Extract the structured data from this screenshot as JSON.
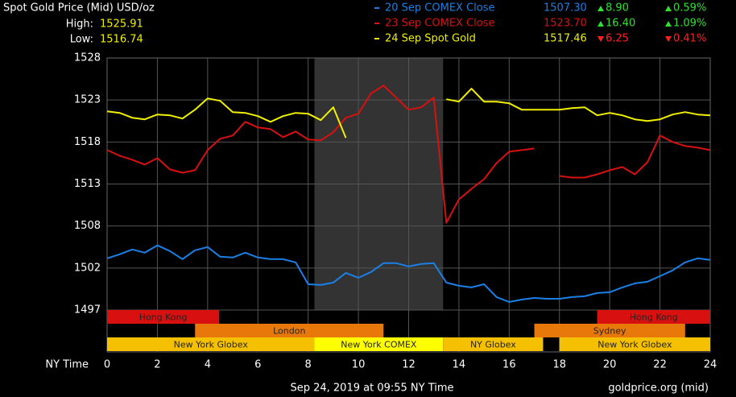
{
  "chart_data": {
    "type": "line",
    "title": "Spot Gold Price (Mid) USD/oz",
    "high_label": "High:",
    "high": "1525.91",
    "low_label": "Low:",
    "low": "1516.74",
    "xlabel": "NY Time",
    "footer_left": "Sep 24, 2019 at 09:55 NY Time",
    "footer_right": "goldprice.org (mid)",
    "xlim": [
      0,
      24
    ],
    "xticks": [
      0,
      2,
      4,
      6,
      8,
      10,
      12,
      14,
      16,
      18,
      20,
      22,
      24
    ],
    "ylim": [
      1497.2,
      1528.4
    ],
    "yticks": [
      {
        "value": 1497.2,
        "label": "1497"
      },
      {
        "value": 1502.4,
        "label": "1502"
      },
      {
        "value": 1507.6,
        "label": "1508"
      },
      {
        "value": 1512.8,
        "label": "1513"
      },
      {
        "value": 1518.0,
        "label": "1518"
      },
      {
        "value": 1523.2,
        "label": "1523"
      },
      {
        "value": 1528.4,
        "label": "1528"
      }
    ],
    "grid": true,
    "highlight_span": [
      8.25,
      13.37
    ],
    "x": [
      0,
      0.5,
      1,
      1.5,
      2,
      2.5,
      3,
      3.5,
      4,
      4.5,
      5,
      5.5,
      6,
      6.5,
      7,
      7.5,
      8,
      8.5,
      9,
      9.5,
      10,
      10.5,
      11,
      11.5,
      12,
      12.5,
      13,
      13.5,
      14,
      14.5,
      15,
      15.5,
      16,
      16.5,
      17,
      17.5,
      18,
      18.5,
      19,
      19.5,
      20,
      20.5,
      21,
      21.5,
      22,
      22.5,
      23,
      23.5,
      24
    ],
    "series": [
      {
        "name": "20 Sep COMEX Close",
        "color": "#1a80e6",
        "close": "1507.30",
        "change": "8.90",
        "change_pct": "0.59%",
        "direction": "up",
        "values": [
          1503.6,
          1504.1,
          1504.7,
          1504.3,
          1505.2,
          1504.5,
          1503.5,
          1504.6,
          1505.0,
          1503.8,
          1503.7,
          1504.3,
          1503.7,
          1503.5,
          1503.5,
          1503.1,
          1500.4,
          1500.3,
          1500.6,
          1501.8,
          1501.2,
          1501.9,
          1503.0,
          1503.0,
          1502.6,
          1502.9,
          1503.0,
          1500.6,
          1500.2,
          1500.0,
          1500.4,
          1498.8,
          1498.2,
          1498.5,
          1498.7,
          1498.6,
          1498.6,
          1498.8,
          1498.9,
          1499.3,
          1499.4,
          1500.0,
          1500.5,
          1500.7,
          1501.4,
          1502.1,
          1503.1,
          1503.6,
          1503.4
        ]
      },
      {
        "name": "23 Sep COMEX Close",
        "color": "#d81010",
        "close": "1523.70",
        "change": "16.40",
        "change_pct": "1.09%",
        "direction": "up",
        "values": [
          1517.0,
          1516.3,
          1515.8,
          1515.2,
          1516.0,
          1514.6,
          1514.2,
          1514.5,
          1517.0,
          1518.4,
          1518.8,
          1520.5,
          1519.8,
          1519.6,
          1518.6,
          1519.3,
          1518.3,
          1518.2,
          1519.2,
          1521.0,
          1521.5,
          1524.0,
          1525.0,
          1523.5,
          1522.0,
          1522.3,
          1523.5,
          1508.0,
          1510.9,
          1512.2,
          1513.4,
          1515.4,
          1516.8,
          1517.0,
          1517.2,
          null,
          1513.8,
          1513.6,
          1513.6,
          1514.0,
          1514.5,
          1514.9,
          1514.0,
          1515.5,
          1518.8,
          1518.0,
          1517.5,
          1517.3,
          1517.0
        ]
      },
      {
        "name": "24 Sep Spot Gold",
        "color": "#f0f000",
        "close": "1517.46",
        "change": "6.25",
        "change_pct": "0.41%",
        "direction": "down",
        "values": [
          1521.8,
          1521.6,
          1521.0,
          1520.8,
          1521.4,
          1521.3,
          1520.9,
          1522.0,
          1523.4,
          1523.1,
          1521.7,
          1521.6,
          1521.2,
          1520.5,
          1521.2,
          1521.6,
          1521.5,
          1520.7,
          1522.3,
          1518.5,
          null,
          null,
          null,
          null,
          null,
          null,
          null,
          1523.3,
          1523.0,
          1524.6,
          1523.0,
          1523.0,
          1522.8,
          1522.0,
          1522.0,
          1522.0,
          1522.0,
          1522.2,
          1522.3,
          1521.3,
          1521.6,
          1521.3,
          1520.8,
          1520.6,
          1520.8,
          1521.4,
          1521.7,
          1521.4,
          1521.3
        ]
      }
    ],
    "sessions": [
      [
        {
          "label": "Hong Kong",
          "start": 0,
          "end": 4.46,
          "color": "#d81010"
        },
        {
          "label": "Hong Kong",
          "start": 19.5,
          "end": 24,
          "color": "#d81010"
        }
      ],
      [
        {
          "label": "London",
          "start": 3.5,
          "end": 11.0,
          "color": "#e8780a"
        },
        {
          "label": "Sydney",
          "start": 17.0,
          "end": 23.0,
          "color": "#e8780a"
        }
      ],
      [
        {
          "label": "New York Globex",
          "start": 0,
          "end": 8.25,
          "color": "#f5c000"
        },
        {
          "label": "New York COMEX",
          "start": 8.25,
          "end": 13.37,
          "color": "#ffff00"
        },
        {
          "label": "NY Globex",
          "start": 13.37,
          "end": 17.35,
          "color": "#f5c000"
        },
        {
          "label": "New York Globex",
          "start": 18.0,
          "end": 24,
          "color": "#f5c000"
        }
      ]
    ]
  }
}
